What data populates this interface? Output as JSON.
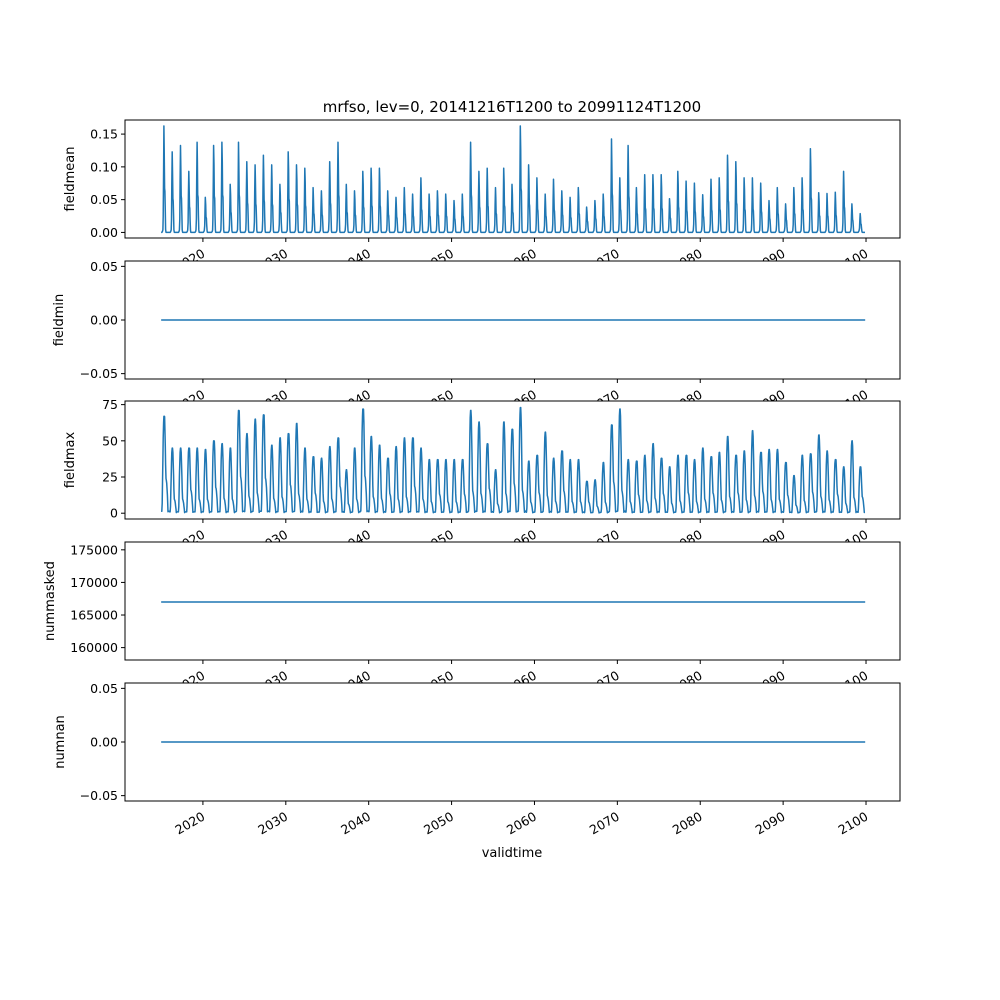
{
  "chart_data": {
    "type": "line",
    "title": "mrfso, lev=0, 20141216T1200 to 20991124T1200",
    "xlabel": "validtime",
    "xlim": [
      2010.6,
      2104.1
    ],
    "x_ticks": [
      "2020",
      "2030",
      "2040",
      "2050",
      "2060",
      "2070",
      "2080",
      "2090",
      "2100"
    ],
    "x_tick_values": [
      2020,
      2030,
      2040,
      2050,
      2060,
      2070,
      2080,
      2090,
      2100
    ],
    "x_start": 2014.96,
    "x_end": 2099.9,
    "line_color": "#1f77b4",
    "grid": false,
    "panels": [
      {
        "ylabel": "fieldmean",
        "ylim": [
          -0.0085,
          0.1715
        ],
        "y_ticks": [
          "0.00",
          "0.05",
          "0.10",
          "0.15"
        ],
        "y_tick_values": [
          0,
          0.05,
          0.1,
          0.15
        ],
        "kind": "seasonal",
        "baseline": 0,
        "annual_peaks_2015_2099": [
          0.16,
          0.12,
          0.13,
          0.09,
          0.135,
          0.05,
          0.13,
          0.135,
          0.07,
          0.135,
          0.105,
          0.1,
          0.115,
          0.1,
          0.07,
          0.12,
          0.1,
          0.095,
          0.065,
          0.06,
          0.105,
          0.135,
          0.07,
          0.06,
          0.09,
          0.095,
          0.095,
          0.06,
          0.05,
          0.065,
          0.055,
          0.08,
          0.055,
          0.06,
          0.055,
          0.045,
          0.055,
          0.135,
          0.09,
          0.095,
          0.065,
          0.095,
          0.07,
          0.16,
          0.1,
          0.08,
          0.055,
          0.078,
          0.06,
          0.05,
          0.065,
          0.035,
          0.045,
          0.055,
          0.14,
          0.08,
          0.13,
          0.065,
          0.085,
          0.085,
          0.085,
          0.048,
          0.09,
          0.075,
          0.072,
          0.054,
          0.078,
          0.08,
          0.115,
          0.105,
          0.08,
          0.08,
          0.072,
          0.045,
          0.065,
          0.04,
          0.065,
          0.08,
          0.125,
          0.057,
          0.056,
          0.058,
          0.09,
          0.04,
          0.025
        ]
      },
      {
        "ylabel": "fieldmin",
        "ylim": [
          -0.055,
          0.055
        ],
        "y_ticks": [
          "−0.05",
          "0.00",
          "0.05"
        ],
        "y_tick_values": [
          -0.05,
          0,
          0.05
        ],
        "kind": "constant",
        "value": 0
      },
      {
        "ylabel": "fieldmax",
        "ylim": [
          -4,
          77.5
        ],
        "y_ticks": [
          "0",
          "25",
          "50",
          "75"
        ],
        "y_tick_values": [
          0,
          25,
          50,
          75
        ],
        "kind": "seasonal",
        "baseline": 0,
        "annual_peaks_2015_2099": [
          67,
          45,
          45,
          45,
          45,
          44,
          50,
          48,
          45,
          71,
          55,
          65,
          68,
          47,
          52,
          55,
          62,
          45,
          39,
          38,
          46,
          52,
          30,
          45,
          72,
          53,
          47,
          38,
          46,
          52,
          52,
          45,
          37,
          37,
          37,
          37,
          37,
          71,
          63,
          48,
          30,
          63,
          58,
          73,
          36,
          40,
          56,
          38,
          43,
          37,
          37,
          22,
          23,
          35,
          61,
          72,
          37,
          36,
          40,
          48,
          38,
          32,
          40,
          40,
          37,
          45,
          39,
          42,
          53,
          40,
          43,
          57,
          42,
          44,
          44,
          35,
          26,
          40,
          41,
          54,
          43,
          37,
          32,
          50,
          32
        ]
      },
      {
        "ylabel": "nummasked",
        "ylim": [
          158100,
          176200
        ],
        "y_ticks": [
          "160000",
          "165000",
          "170000",
          "175000"
        ],
        "y_tick_values": [
          160000,
          165000,
          170000,
          175000
        ],
        "kind": "constant",
        "value": 167000
      },
      {
        "ylabel": "numnan",
        "ylim": [
          -0.055,
          0.055
        ],
        "y_ticks": [
          "−0.05",
          "0.00",
          "0.05"
        ],
        "y_tick_values": [
          -0.05,
          0,
          0.05
        ],
        "kind": "constant",
        "value": 0
      }
    ]
  }
}
